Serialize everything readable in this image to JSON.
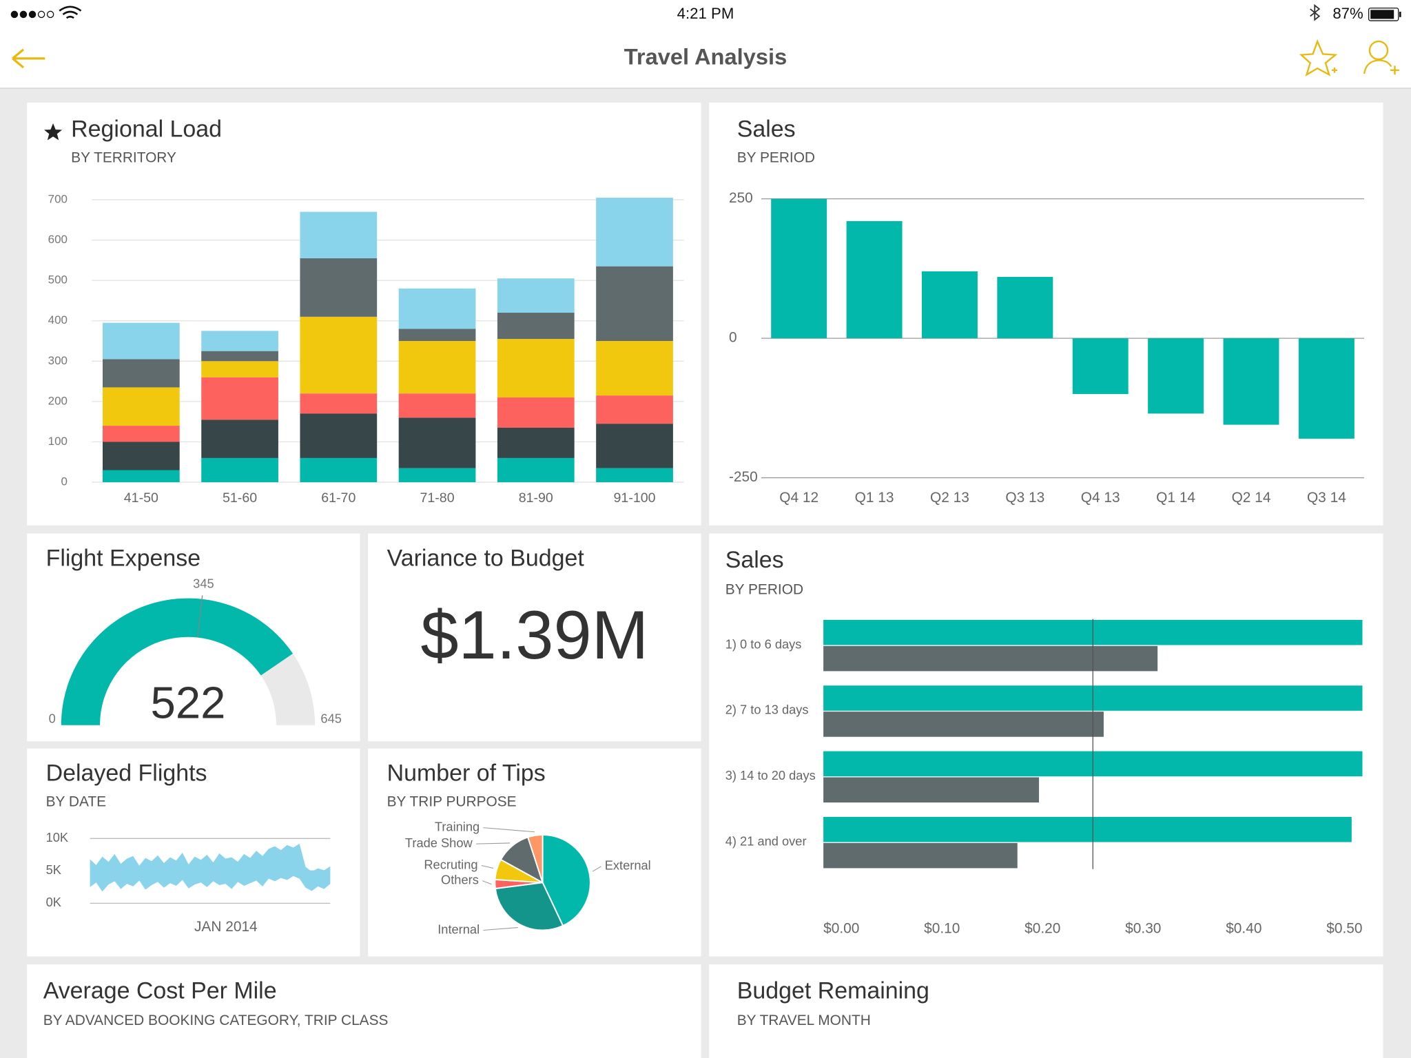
{
  "status_bar": {
    "time": "4:21 PM",
    "battery": "87%"
  },
  "header": {
    "title": "Travel Analysis"
  },
  "regional_load": {
    "title": "Regional Load",
    "subtitle": "BY TERRITORY",
    "chart_data": {
      "type": "stacked_bar",
      "categories": [
        "41-50",
        "51-60",
        "61-70",
        "71-80",
        "81-90",
        "91-100"
      ],
      "series": [
        {
          "color": "#01b8aa",
          "values": [
            30,
            60,
            60,
            35,
            60,
            35
          ]
        },
        {
          "color": "#374649",
          "values": [
            70,
            95,
            110,
            125,
            75,
            110
          ]
        },
        {
          "color": "#fd625e",
          "values": [
            40,
            105,
            50,
            60,
            75,
            70
          ]
        },
        {
          "color": "#f2c80f",
          "values": [
            95,
            40,
            190,
            130,
            145,
            135
          ]
        },
        {
          "color": "#5f6b6d",
          "values": [
            70,
            25,
            145,
            30,
            65,
            185
          ]
        },
        {
          "color": "#8ad4eb",
          "values": [
            90,
            50,
            115,
            100,
            85,
            170
          ]
        }
      ],
      "ylim": [
        0,
        700
      ],
      "yticks": [
        0,
        100,
        200,
        300,
        400,
        500,
        600,
        700
      ],
      "grid": true
    }
  },
  "sales_by_period": {
    "title": "Sales",
    "subtitle": "BY PERIOD",
    "chart_data": {
      "type": "bar",
      "categories": [
        "Q4 12",
        "Q1 13",
        "Q2 13",
        "Q3 13",
        "Q4 13",
        "Q1 14",
        "Q2 14",
        "Q3 14"
      ],
      "values": [
        250,
        210,
        120,
        110,
        -100,
        -135,
        -155,
        -180
      ],
      "color": "#01b8aa",
      "ylim": [
        -250,
        250
      ],
      "yticks": [
        -250,
        0,
        250
      ],
      "grid": true
    }
  },
  "flight_expense": {
    "title": "Flight Expense",
    "chart_data": {
      "type": "gauge",
      "value": 522,
      "target": 345,
      "range": [
        0,
        645
      ],
      "color": "#01b8aa",
      "track_color": "#e8e9e8"
    }
  },
  "variance_to_budget": {
    "title": "Variance to Budget",
    "value": "$1.39M"
  },
  "sales_by_days": {
    "title": "Sales",
    "subtitle": "BY PERIOD",
    "chart_data": {
      "type": "hbar",
      "categories": [
        "1) 0 to 6 days",
        "2) 7 to 13 days",
        "3) 14 to 20 days",
        "4) 21 and over"
      ],
      "series": [
        {
          "color": "#01b8aa",
          "values": [
            0.5,
            0.5,
            0.5,
            0.49
          ]
        },
        {
          "color": "#5f6b6d",
          "values": [
            0.31,
            0.26,
            0.2,
            0.18
          ]
        }
      ],
      "xlim": [
        0,
        0.5
      ],
      "xticks": [
        {
          "value": 0,
          "label": "$0.00"
        },
        {
          "value": 0.1,
          "label": "$0.10"
        },
        {
          "value": 0.2,
          "label": "$0.20"
        },
        {
          "value": 0.3,
          "label": "$0.30"
        },
        {
          "value": 0.4,
          "label": "$0.40"
        },
        {
          "value": 0.5,
          "label": "$0.50"
        }
      ],
      "reference_line": 0.25
    }
  },
  "delayed_flights": {
    "title": "Delayed Flights",
    "subtitle": "BY DATE",
    "chart_data": {
      "type": "range_area",
      "x_label": "JAN 2014",
      "color": "#8ad4eb",
      "low": [
        2500,
        3200,
        1800,
        2900,
        3400,
        2200,
        3000,
        2600,
        3500,
        2100,
        2800,
        3300,
        2400,
        3100,
        2700,
        3600,
        2300,
        2900,
        3200,
        2500,
        3400,
        2800,
        3000,
        2200,
        3300,
        2700,
        3100,
        3500,
        2600,
        3800,
        3400,
        3900,
        3600,
        4200,
        3800,
        2400,
        1900,
        2600,
        2200,
        3000
      ],
      "high": [
        6800,
        5900,
        7200,
        6400,
        7600,
        6100,
        6900,
        7300,
        5800,
        7000,
        6500,
        7400,
        6200,
        7100,
        6600,
        7800,
        6000,
        7200,
        6700,
        7500,
        6300,
        7700,
        6900,
        7100,
        6400,
        7600,
        7000,
        8100,
        7300,
        8400,
        8800,
        8200,
        9000,
        8600,
        9200,
        5600,
        4900,
        5400,
        5100,
        5700
      ],
      "ylim": [
        0,
        10000
      ],
      "yticks": [
        {
          "value": 0,
          "label": "0K"
        },
        {
          "value": 5000,
          "label": "5K"
        },
        {
          "value": 10000,
          "label": "10K"
        }
      ],
      "grid": true
    }
  },
  "number_of_tips": {
    "title": "Number of Tips",
    "subtitle": "BY TRIP PURPOSE",
    "chart_data": {
      "type": "pie",
      "categories": [
        "External",
        "Internal",
        "Others",
        "Recruting",
        "Trade Show",
        "Training"
      ],
      "values": [
        43,
        30,
        3,
        7,
        12,
        5
      ],
      "colors": [
        "#01b8aa",
        "#14958c",
        "#fd625e",
        "#f2c80f",
        "#5f6b6d",
        "#fe9666"
      ]
    }
  },
  "average_cost_per_mile": {
    "title": "Average Cost Per Mile",
    "subtitle": "BY ADVANCED BOOKING CATEGORY, TRIP CLASS"
  },
  "budget_remaining": {
    "title": "Budget Remaining",
    "subtitle": "BY TRAVEL MONTH"
  }
}
